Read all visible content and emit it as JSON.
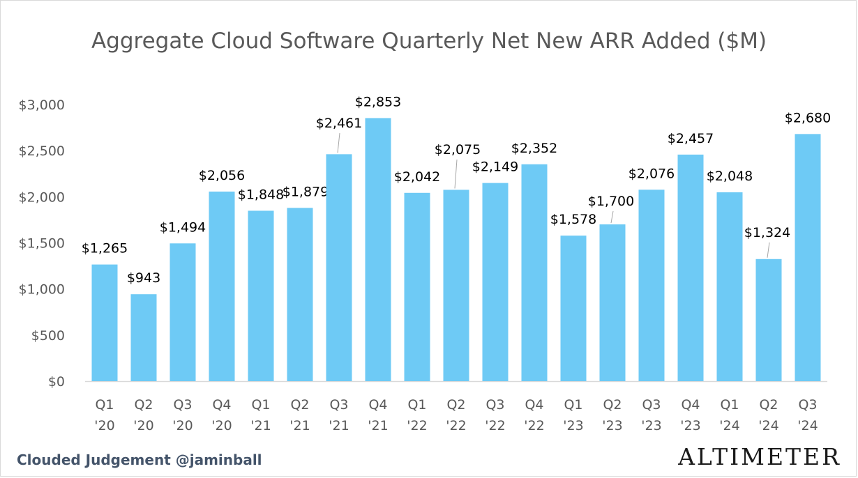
{
  "chart_data": {
    "type": "bar",
    "title": "Aggregate Cloud Software Quarterly Net New ARR Added ($M)",
    "categories": [
      "Q1 '20",
      "Q2 '20",
      "Q3 '20",
      "Q4 '20",
      "Q1 '21",
      "Q2 '21",
      "Q3 '21",
      "Q4 '21",
      "Q1 '22",
      "Q2 '22",
      "Q3 '22",
      "Q4 '22",
      "Q1 '23",
      "Q2 '23",
      "Q3 '23",
      "Q4 '23",
      "Q1 '24",
      "Q2 '24",
      "Q3 '24"
    ],
    "category_lines": [
      [
        "Q1",
        "'20"
      ],
      [
        "Q2",
        "'20"
      ],
      [
        "Q3",
        "'20"
      ],
      [
        "Q4",
        "'20"
      ],
      [
        "Q1",
        "'21"
      ],
      [
        "Q2",
        "'21"
      ],
      [
        "Q3",
        "'21"
      ],
      [
        "Q4",
        "'21"
      ],
      [
        "Q1",
        "'22"
      ],
      [
        "Q2",
        "'22"
      ],
      [
        "Q3",
        "'22"
      ],
      [
        "Q4",
        "'22"
      ],
      [
        "Q1",
        "'23"
      ],
      [
        "Q2",
        "'23"
      ],
      [
        "Q3",
        "'23"
      ],
      [
        "Q4",
        "'23"
      ],
      [
        "Q1",
        "'24"
      ],
      [
        "Q2",
        "'24"
      ],
      [
        "Q3",
        "'24"
      ]
    ],
    "values": [
      1265,
      943,
      1494,
      2056,
      1848,
      1879,
      2461,
      2853,
      2042,
      2075,
      2149,
      2352,
      1578,
      1700,
      2076,
      2457,
      2048,
      1324,
      2680
    ],
    "data_labels": [
      "$1,265",
      "$943",
      "$1,494",
      "$2,056",
      "$1,848",
      "$1,879",
      "$2,461",
      "$2,853",
      "$2,042",
      "$2,075",
      "$2,149",
      "$2,352",
      "$1,578",
      "$1,700",
      "$2,076",
      "$2,457",
      "$2,048",
      "$1,324",
      "$2,680"
    ],
    "y_ticks": [
      0,
      500,
      1000,
      1500,
      2000,
      2500,
      3000
    ],
    "y_tick_labels": [
      "$0",
      "$500",
      "$1,000",
      "$1,500",
      "$2,000",
      "$2,500",
      "$3,000"
    ],
    "ylim": [
      0,
      3000
    ],
    "xlabel": "",
    "ylabel": "",
    "grid": false,
    "legend": "none",
    "bar_color": "#6ecaf5"
  },
  "footer": {
    "left": "Clouded Judgement @jaminball",
    "right": "Altimeter"
  }
}
